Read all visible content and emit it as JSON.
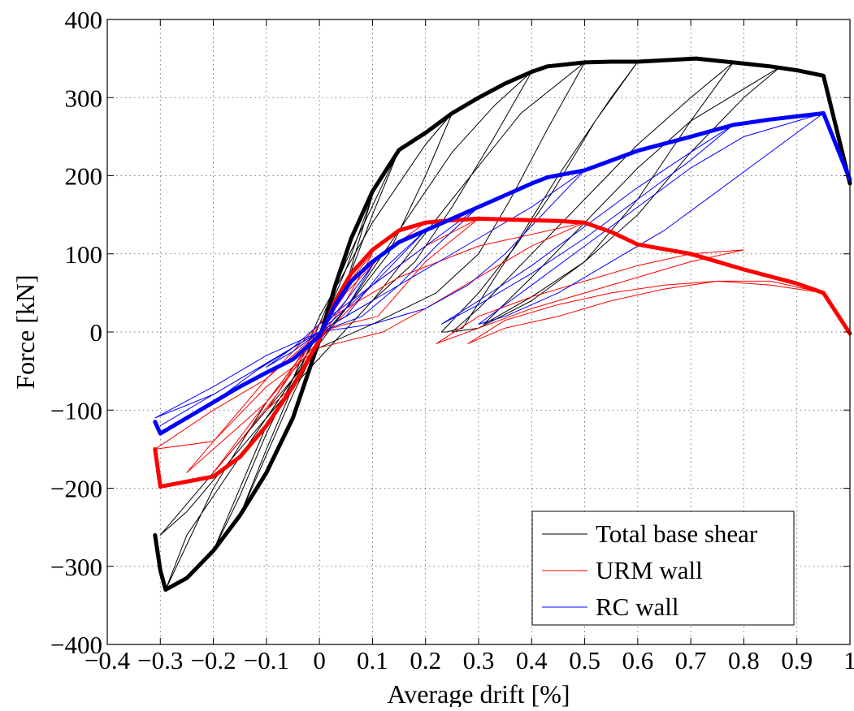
{
  "chart_data": {
    "type": "line",
    "title": "",
    "xlabel": "Average drift [%]",
    "ylabel": "Force [kN]",
    "xlim": [
      -0.4,
      1.0
    ],
    "ylim": [
      -400,
      400
    ],
    "xticks": [
      -0.4,
      -0.3,
      -0.2,
      -0.1,
      0,
      0.1,
      0.2,
      0.3,
      0.4,
      0.5,
      0.6,
      0.7,
      0.8,
      0.9,
      1.0
    ],
    "xtick_labels": [
      "−0.4",
      "−0.3",
      "−0.2",
      "−0.1",
      "0",
      "0.1",
      "0.2",
      "0.3",
      "0.4",
      "0.5",
      "0.6",
      "0.7",
      "0.8",
      "0.9",
      "1"
    ],
    "yticks": [
      -400,
      -300,
      -200,
      -100,
      0,
      100,
      200,
      300,
      400
    ],
    "ytick_labels": [
      "−400",
      "−300",
      "−200",
      "−100",
      "0",
      "100",
      "200",
      "300",
      "400"
    ],
    "grid": true,
    "legend_position": "bottom-right",
    "series": [
      {
        "name": "Total base shear",
        "color": "#000000",
        "envelope": {
          "x": [
            -0.31,
            -0.3,
            -0.29,
            -0.25,
            -0.2,
            -0.15,
            -0.1,
            -0.05,
            0.0,
            0.03,
            0.06,
            0.1,
            0.15,
            0.2,
            0.25,
            0.3,
            0.35,
            0.4,
            0.43,
            0.5,
            0.55,
            0.6,
            0.71,
            0.78,
            0.85,
            0.9,
            0.95,
            1.0
          ],
          "y": [
            -260,
            -305,
            -330,
            -315,
            -280,
            -235,
            -180,
            -110,
            -10,
            60,
            120,
            180,
            233,
            255,
            280,
            300,
            318,
            333,
            340,
            345,
            346,
            346,
            350,
            345,
            340,
            335,
            328,
            190
          ]
        },
        "cycles": [
          {
            "x": [
              0.1,
              0.05,
              0.0,
              -0.05,
              -0.1,
              -0.05,
              0.0,
              0.05,
              0.1
            ],
            "y": [
              175,
              80,
              0,
              -60,
              -110,
              -70,
              -10,
              60,
              175
            ]
          },
          {
            "x": [
              0.15,
              0.1,
              0.05,
              0.0,
              -0.05,
              -0.15,
              -0.1,
              -0.05,
              0.0,
              0.05,
              0.15
            ],
            "y": [
              233,
              150,
              60,
              -10,
              -80,
              -235,
              -150,
              -70,
              10,
              90,
              233
            ]
          },
          {
            "x": [
              0.25,
              0.2,
              0.13,
              0.05,
              0.0,
              -0.1,
              -0.2,
              -0.15,
              -0.1,
              -0.05,
              0.0,
              0.1,
              0.2,
              0.25
            ],
            "y": [
              280,
              200,
              100,
              30,
              -10,
              -120,
              -280,
              -210,
              -130,
              -60,
              20,
              140,
              240,
              280
            ]
          },
          {
            "x": [
              0.4,
              0.33,
              0.25,
              0.18,
              0.1,
              0.0,
              -0.1,
              -0.2,
              -0.29,
              -0.25,
              -0.15,
              -0.05,
              0.05,
              0.15,
              0.25,
              0.33,
              0.4
            ],
            "y": [
              333,
              250,
              160,
              90,
              40,
              0,
              -90,
              -200,
              -330,
              -260,
              -160,
              -60,
              30,
              130,
              230,
              290,
              333
            ]
          },
          {
            "x": [
              0.5,
              0.43,
              0.36,
              0.3,
              0.22,
              0.1,
              0.0,
              -0.1,
              -0.2,
              -0.3,
              -0.25,
              -0.15,
              -0.05,
              0.1,
              0.25,
              0.38,
              0.5
            ],
            "y": [
              345,
              260,
              170,
              100,
              50,
              10,
              -20,
              -100,
              -180,
              -260,
              -230,
              -150,
              -70,
              40,
              170,
              280,
              345
            ]
          },
          {
            "x": [
              0.6,
              0.52,
              0.44,
              0.37,
              0.3,
              0.23,
              0.24,
              0.27,
              0.35,
              0.45,
              0.55,
              0.6
            ],
            "y": [
              346,
              270,
              180,
              110,
              50,
              0,
              0,
              5,
              90,
              200,
              300,
              346
            ]
          },
          {
            "x": [
              0.78,
              0.7,
              0.6,
              0.5,
              0.4,
              0.3,
              0.25,
              0.3,
              0.4,
              0.5,
              0.6,
              0.7,
              0.78
            ],
            "y": [
              345,
              270,
              170,
              90,
              40,
              5,
              0,
              30,
              100,
              170,
              240,
              300,
              345
            ]
          },
          {
            "x": [
              0.87,
              0.8,
              0.7,
              0.6,
              0.5,
              0.4,
              0.31,
              0.4,
              0.5,
              0.6,
              0.7,
              0.87
            ],
            "y": [
              340,
              300,
              230,
              150,
              90,
              45,
              10,
              70,
              140,
              210,
              270,
              340
            ]
          }
        ]
      },
      {
        "name": "URM wall",
        "color": "#ff0000",
        "envelope": {
          "x": [
            -0.31,
            -0.3,
            -0.2,
            -0.15,
            -0.1,
            -0.05,
            0.0,
            0.03,
            0.06,
            0.1,
            0.15,
            0.2,
            0.25,
            0.3,
            0.35,
            0.4,
            0.45,
            0.5,
            0.55,
            0.6,
            0.7,
            0.8,
            0.9,
            0.95,
            1.0
          ],
          "y": [
            -150,
            -198,
            -185,
            -160,
            -120,
            -70,
            -10,
            40,
            75,
            105,
            130,
            140,
            143,
            145,
            144,
            143,
            142,
            140,
            128,
            112,
            100,
            80,
            62,
            50,
            -2
          ]
        },
        "cycles": [
          {
            "x": [
              0.1,
              0.05,
              0.0,
              -0.05,
              -0.1,
              -0.05,
              0.0,
              0.05,
              0.1
            ],
            "y": [
              100,
              60,
              0,
              -50,
              -100,
              -70,
              -10,
              40,
              100
            ]
          },
          {
            "x": [
              0.2,
              0.12,
              0.05,
              0.0,
              -0.1,
              -0.2,
              -0.15,
              -0.08,
              0.0,
              0.08,
              0.2
            ],
            "y": [
              140,
              100,
              50,
              0,
              -90,
              -180,
              -140,
              -80,
              10,
              80,
              140
            ]
          },
          {
            "x": [
              0.3,
              0.2,
              0.11,
              0.05,
              0.0,
              -0.1,
              -0.2,
              -0.25,
              -0.2,
              -0.1,
              0.0,
              0.1,
              0.2,
              0.3
            ],
            "y": [
              145,
              90,
              20,
              10,
              0,
              -60,
              -140,
              -180,
              -150,
              -90,
              -10,
              60,
              110,
              145
            ]
          },
          {
            "x": [
              0.5,
              0.4,
              0.3,
              0.2,
              0.12,
              0.0,
              -0.1,
              -0.2,
              -0.31,
              -0.2,
              -0.1,
              0.0,
              0.15,
              0.3,
              0.5
            ],
            "y": [
              140,
              110,
              70,
              30,
              0,
              -20,
              -70,
              -140,
              -150,
              -100,
              -60,
              10,
              70,
              110,
              140
            ]
          },
          {
            "x": [
              0.8,
              0.7,
              0.6,
              0.5,
              0.4,
              0.3,
              0.22,
              0.3,
              0.4,
              0.5,
              0.6,
              0.7,
              0.8
            ],
            "y": [
              105,
              100,
              85,
              65,
              45,
              20,
              -15,
              5,
              30,
              50,
              70,
              90,
              105
            ]
          },
          {
            "x": [
              0.95,
              0.85,
              0.75,
              0.65,
              0.55,
              0.45,
              0.35,
              0.28,
              0.35,
              0.45,
              0.55,
              0.65,
              0.75,
              0.85,
              0.95
            ],
            "y": [
              50,
              65,
              65,
              55,
              40,
              20,
              5,
              -15,
              15,
              35,
              50,
              60,
              65,
              60,
              50
            ]
          }
        ]
      },
      {
        "name": "RC wall",
        "color": "#0000ff",
        "envelope": {
          "x": [
            -0.31,
            -0.3,
            -0.25,
            -0.2,
            -0.15,
            -0.1,
            -0.05,
            0.0,
            0.03,
            0.06,
            0.1,
            0.15,
            0.2,
            0.25,
            0.3,
            0.35,
            0.4,
            0.43,
            0.5,
            0.6,
            0.7,
            0.78,
            0.85,
            0.9,
            0.95,
            1.0
          ],
          "y": [
            -115,
            -130,
            -110,
            -90,
            -70,
            -52,
            -35,
            -5,
            35,
            65,
            90,
            115,
            130,
            145,
            160,
            175,
            190,
            198,
            207,
            232,
            250,
            265,
            272,
            276,
            280,
            195
          ]
        },
        "cycles": [
          {
            "x": [
              0.1,
              0.05,
              0.0,
              -0.05,
              -0.1,
              -0.05,
              0.0,
              0.05,
              0.1
            ],
            "y": [
              85,
              40,
              0,
              -20,
              -45,
              -25,
              0,
              30,
              85
            ]
          },
          {
            "x": [
              0.2,
              0.12,
              0.05,
              0.0,
              -0.1,
              -0.2,
              -0.12,
              -0.05,
              0.0,
              0.1,
              0.2
            ],
            "y": [
              130,
              80,
              20,
              0,
              -40,
              -90,
              -50,
              -20,
              10,
              60,
              130
            ]
          },
          {
            "x": [
              0.3,
              0.22,
              0.15,
              0.08,
              0.0,
              -0.1,
              -0.2,
              -0.3,
              -0.2,
              -0.1,
              0.0,
              0.1,
              0.2,
              0.3
            ],
            "y": [
              160,
              110,
              60,
              20,
              0,
              -40,
              -80,
              -120,
              -80,
              -40,
              0,
              60,
              110,
              160
            ]
          },
          {
            "x": [
              0.5,
              0.42,
              0.35,
              0.28,
              0.2,
              0.1,
              0.0,
              -0.1,
              -0.2,
              -0.31,
              -0.2,
              -0.1,
              0.0,
              0.1,
              0.2,
              0.3,
              0.4,
              0.5
            ],
            "y": [
              207,
              150,
              100,
              60,
              30,
              10,
              0,
              -30,
              -70,
              -110,
              -80,
              -40,
              0,
              40,
              80,
              120,
              160,
              207
            ]
          },
          {
            "x": [
              0.78,
              0.7,
              0.6,
              0.5,
              0.4,
              0.3,
              0.23,
              0.3,
              0.4,
              0.5,
              0.6,
              0.7,
              0.78
            ],
            "y": [
              265,
              220,
              170,
              120,
              75,
              35,
              10,
              40,
              85,
              135,
              185,
              230,
              265
            ]
          },
          {
            "x": [
              0.95,
              0.85,
              0.75,
              0.65,
              0.55,
              0.45,
              0.35,
              0.3,
              0.4,
              0.5,
              0.6,
              0.7,
              0.8,
              0.95
            ],
            "y": [
              280,
              230,
              180,
              130,
              90,
              50,
              20,
              10,
              60,
              110,
              160,
              210,
              250,
              280
            ]
          }
        ]
      }
    ]
  }
}
